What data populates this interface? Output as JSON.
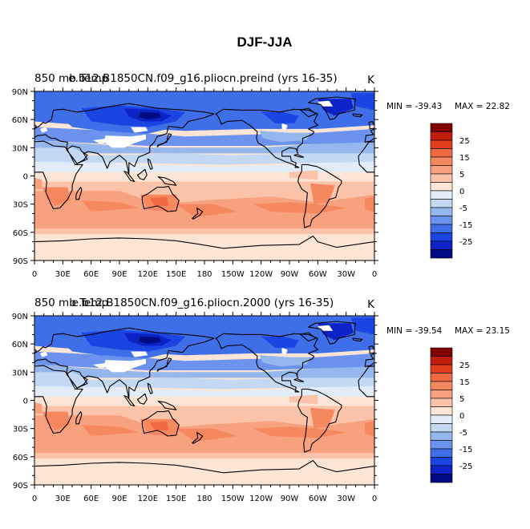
{
  "figure_title": "DJF-JJA",
  "colors": {
    "ocean_default": "#fde5d6",
    "land_default": "#6b93ee",
    "nodata": "#ffffff",
    "coast": "#000000"
  },
  "colorbar": {
    "labels": [
      "25",
      "15",
      "5",
      "0",
      "-5",
      "-15",
      "-25"
    ],
    "colors": [
      "#800000",
      "#be1e0a",
      "#e13d1c",
      "#f06940",
      "#f6885f",
      "#f8a17f",
      "#fbc3aa",
      "#fde5d6",
      "#e3edfa",
      "#c2d8f3",
      "#94b7ee",
      "#6b93ee",
      "#3f6fe8",
      "#1c44e3",
      "#0d22c7",
      "#000a82"
    ]
  },
  "chart_data": [
    {
      "type": "heatmap",
      "title_left": "850 mb Temp",
      "title_center": "e.b12.B1850CN.f09_g16.pliocn.preind (yrs 16-35)",
      "units": "K",
      "min_label": "MIN = -39.43",
      "max_label": "MAX = 22.82",
      "min": -39.43,
      "max": 22.82,
      "xlim": [
        0,
        360
      ],
      "ylim": [
        -90,
        90
      ],
      "x_ticks": [
        "0",
        "30E",
        "60E",
        "90E",
        "120E",
        "150E",
        "180",
        "150W",
        "120W",
        "90W",
        "60W",
        "30W",
        "0"
      ],
      "y_ticks": [
        "90N",
        "60N",
        "30N",
        "0",
        "30S",
        "60S",
        "90S"
      ]
    },
    {
      "type": "heatmap",
      "title_left": "850 mb Temp",
      "title_center": "e.b12.B1850CN.f09_g16.pliocn.2000 (yrs 16-35)",
      "units": "K",
      "min_label": "MIN = -39.54",
      "max_label": "MAX = 23.15",
      "min": -39.54,
      "max": 23.15,
      "xlim": [
        0,
        360
      ],
      "ylim": [
        -90,
        90
      ],
      "x_ticks": [
        "0",
        "30E",
        "60E",
        "90E",
        "120E",
        "150E",
        "180",
        "150W",
        "120W",
        "90W",
        "60W",
        "30W",
        "0"
      ],
      "y_ticks": [
        "90N",
        "60N",
        "30N",
        "0",
        "30S",
        "60S",
        "90S"
      ]
    }
  ]
}
